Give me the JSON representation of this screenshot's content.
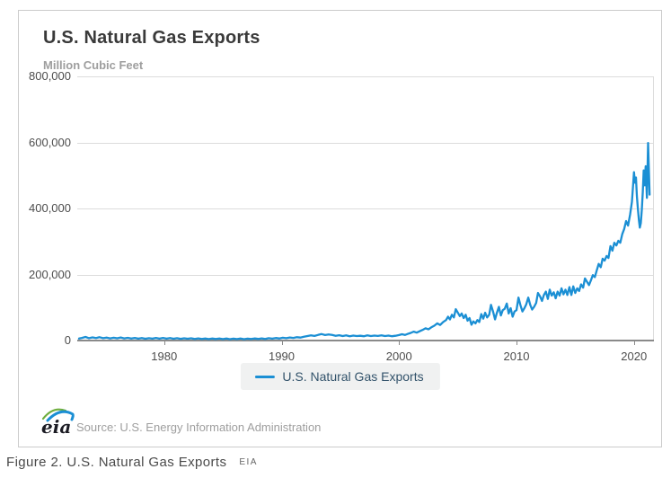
{
  "panel": {
    "title": "U.S. Natural Gas Exports",
    "units_label": "Million Cubic Feet"
  },
  "legend": {
    "label": "U.S. Natural Gas Exports"
  },
  "footer": {
    "logo_text": "eia",
    "source": "Source: U.S. Energy Information Administration"
  },
  "caption": {
    "text": "Figure 2. U.S. Natural Gas Exports",
    "attribution": "EIA"
  },
  "colors": {
    "line": "#1b8fd4",
    "grid": "#dcdcdc",
    "axis": "#8a8a8a",
    "panel_border": "#cccccc",
    "title_text": "#3a3a3a",
    "muted_text": "#9e9e9e",
    "tick_text": "#4d4d4d",
    "legend_bg": "#f0f1f1",
    "legend_text": "#33536b"
  },
  "chart_data": {
    "type": "line",
    "title": "U.S. Natural Gas Exports",
    "ylabel": "Million Cubic Feet",
    "xlabel": "",
    "series_name": "U.S. Natural Gas Exports",
    "grid": true,
    "legend_position": "bottom",
    "x_range": [
      1972.6,
      2021.7
    ],
    "y_range": [
      0,
      800000
    ],
    "y_ticks": [
      {
        "value": 800000,
        "label": "800,000"
      },
      {
        "value": 600000,
        "label": "600,000"
      },
      {
        "value": 400000,
        "label": "400,000"
      },
      {
        "value": 200000,
        "label": "200,000"
      },
      {
        "value": 0,
        "label": "0"
      }
    ],
    "x_ticks": [
      {
        "value": 1980,
        "label": "1980"
      },
      {
        "value": 1990,
        "label": "1990"
      },
      {
        "value": 2000,
        "label": "2000"
      },
      {
        "value": 2010,
        "label": "2010"
      },
      {
        "value": 2020,
        "label": "2020"
      }
    ],
    "points": [
      [
        1972.75,
        6000
      ],
      [
        1973.0,
        8000
      ],
      [
        1973.3,
        11000
      ],
      [
        1973.6,
        7000
      ],
      [
        1973.9,
        9500
      ],
      [
        1974.2,
        7500
      ],
      [
        1974.5,
        10000
      ],
      [
        1974.8,
        7000
      ],
      [
        1975.1,
        9000
      ],
      [
        1975.4,
        6500
      ],
      [
        1975.7,
        8500
      ],
      [
        1976.0,
        6800
      ],
      [
        1976.3,
        9200
      ],
      [
        1976.6,
        6400
      ],
      [
        1976.9,
        8200
      ],
      [
        1977.2,
        6000
      ],
      [
        1977.5,
        8000
      ],
      [
        1977.8,
        5600
      ],
      [
        1978.1,
        7600
      ],
      [
        1978.4,
        5400
      ],
      [
        1978.7,
        7200
      ],
      [
        1979.0,
        5800
      ],
      [
        1979.3,
        8000
      ],
      [
        1979.6,
        5600
      ],
      [
        1979.9,
        7800
      ],
      [
        1980.2,
        5800
      ],
      [
        1980.5,
        7600
      ],
      [
        1980.8,
        5400
      ],
      [
        1981.1,
        7200
      ],
      [
        1981.4,
        5200
      ],
      [
        1981.7,
        6800
      ],
      [
        1982.0,
        5400
      ],
      [
        1982.3,
        6800
      ],
      [
        1982.6,
        4800
      ],
      [
        1982.9,
        6400
      ],
      [
        1983.2,
        4600
      ],
      [
        1983.5,
        6200
      ],
      [
        1983.8,
        4400
      ],
      [
        1984.1,
        6000
      ],
      [
        1984.4,
        4600
      ],
      [
        1984.7,
        6200
      ],
      [
        1985.0,
        4400
      ],
      [
        1985.3,
        6000
      ],
      [
        1985.6,
        4200
      ],
      [
        1985.9,
        5800
      ],
      [
        1986.2,
        4400
      ],
      [
        1986.5,
        6000
      ],
      [
        1986.8,
        4200
      ],
      [
        1987.1,
        5800
      ],
      [
        1987.4,
        4600
      ],
      [
        1987.7,
        6200
      ],
      [
        1988.0,
        4800
      ],
      [
        1988.3,
        6600
      ],
      [
        1988.6,
        5000
      ],
      [
        1988.9,
        7000
      ],
      [
        1989.2,
        5600
      ],
      [
        1989.5,
        7600
      ],
      [
        1989.8,
        6200
      ],
      [
        1990.1,
        8400
      ],
      [
        1990.4,
        7000
      ],
      [
        1990.7,
        9200
      ],
      [
        1991.0,
        8000
      ],
      [
        1991.3,
        10000
      ],
      [
        1991.6,
        9000
      ],
      [
        1991.9,
        11500
      ],
      [
        1992.2,
        13500
      ],
      [
        1992.5,
        15500
      ],
      [
        1992.8,
        14000
      ],
      [
        1993.1,
        17000
      ],
      [
        1993.4,
        19500
      ],
      [
        1993.7,
        16500
      ],
      [
        1994.0,
        18500
      ],
      [
        1994.3,
        17000
      ],
      [
        1994.6,
        14500
      ],
      [
        1994.9,
        16000
      ],
      [
        1995.2,
        13500
      ],
      [
        1995.5,
        15500
      ],
      [
        1995.8,
        13000
      ],
      [
        1996.1,
        15000
      ],
      [
        1996.4,
        13500
      ],
      [
        1996.7,
        14500
      ],
      [
        1997.0,
        13000
      ],
      [
        1997.3,
        15500
      ],
      [
        1997.6,
        13500
      ],
      [
        1997.9,
        15000
      ],
      [
        1998.2,
        14000
      ],
      [
        1998.5,
        15500
      ],
      [
        1998.8,
        13500
      ],
      [
        1999.1,
        15000
      ],
      [
        1999.4,
        13000
      ],
      [
        1999.7,
        14500
      ],
      [
        2000.0,
        16500
      ],
      [
        2000.25,
        19000
      ],
      [
        2000.5,
        17000
      ],
      [
        2000.75,
        20000
      ],
      [
        2001.0,
        23000
      ],
      [
        2001.25,
        27000
      ],
      [
        2001.5,
        24000
      ],
      [
        2001.75,
        28000
      ],
      [
        2002.0,
        32000
      ],
      [
        2002.25,
        37000
      ],
      [
        2002.5,
        34000
      ],
      [
        2002.75,
        40000
      ],
      [
        2003.0,
        45000
      ],
      [
        2003.25,
        52000
      ],
      [
        2003.5,
        47000
      ],
      [
        2003.75,
        56000
      ],
      [
        2004.0,
        62000
      ],
      [
        2004.17,
        72000
      ],
      [
        2004.33,
        64000
      ],
      [
        2004.5,
        78000
      ],
      [
        2004.67,
        70000
      ],
      [
        2004.83,
        95000
      ],
      [
        2005.0,
        85000
      ],
      [
        2005.17,
        74000
      ],
      [
        2005.33,
        82000
      ],
      [
        2005.5,
        68000
      ],
      [
        2005.67,
        78000
      ],
      [
        2005.83,
        60000
      ],
      [
        2006.0,
        68000
      ],
      [
        2006.17,
        48000
      ],
      [
        2006.33,
        58000
      ],
      [
        2006.5,
        52000
      ],
      [
        2006.67,
        62000
      ],
      [
        2006.83,
        56000
      ],
      [
        2007.0,
        80000
      ],
      [
        2007.17,
        66000
      ],
      [
        2007.33,
        84000
      ],
      [
        2007.5,
        70000
      ],
      [
        2007.67,
        78000
      ],
      [
        2007.83,
        108000
      ],
      [
        2008.0,
        88000
      ],
      [
        2008.17,
        64000
      ],
      [
        2008.33,
        84000
      ],
      [
        2008.5,
        102000
      ],
      [
        2008.67,
        76000
      ],
      [
        2008.83,
        92000
      ],
      [
        2009.0,
        96000
      ],
      [
        2009.17,
        112000
      ],
      [
        2009.33,
        82000
      ],
      [
        2009.5,
        98000
      ],
      [
        2009.67,
        72000
      ],
      [
        2009.83,
        88000
      ],
      [
        2010.0,
        92000
      ],
      [
        2010.17,
        130000
      ],
      [
        2010.33,
        108000
      ],
      [
        2010.5,
        88000
      ],
      [
        2010.67,
        98000
      ],
      [
        2010.83,
        110000
      ],
      [
        2011.0,
        130000
      ],
      [
        2011.17,
        108000
      ],
      [
        2011.33,
        94000
      ],
      [
        2011.5,
        102000
      ],
      [
        2011.67,
        114000
      ],
      [
        2011.83,
        144000
      ],
      [
        2012.0,
        134000
      ],
      [
        2012.17,
        120000
      ],
      [
        2012.33,
        138000
      ],
      [
        2012.5,
        148000
      ],
      [
        2012.67,
        126000
      ],
      [
        2012.83,
        154000
      ],
      [
        2013.0,
        136000
      ],
      [
        2013.17,
        146000
      ],
      [
        2013.33,
        128000
      ],
      [
        2013.5,
        148000
      ],
      [
        2013.67,
        136000
      ],
      [
        2013.83,
        158000
      ],
      [
        2014.0,
        140000
      ],
      [
        2014.17,
        154000
      ],
      [
        2014.33,
        138000
      ],
      [
        2014.5,
        162000
      ],
      [
        2014.67,
        138000
      ],
      [
        2014.83,
        164000
      ],
      [
        2015.0,
        144000
      ],
      [
        2015.17,
        158000
      ],
      [
        2015.33,
        150000
      ],
      [
        2015.5,
        170000
      ],
      [
        2015.67,
        160000
      ],
      [
        2015.83,
        188000
      ],
      [
        2016.0,
        178000
      ],
      [
        2016.17,
        168000
      ],
      [
        2016.33,
        182000
      ],
      [
        2016.5,
        198000
      ],
      [
        2016.67,
        192000
      ],
      [
        2016.83,
        212000
      ],
      [
        2017.0,
        232000
      ],
      [
        2017.17,
        222000
      ],
      [
        2017.33,
        248000
      ],
      [
        2017.5,
        242000
      ],
      [
        2017.67,
        256000
      ],
      [
        2017.83,
        250000
      ],
      [
        2018.0,
        286000
      ],
      [
        2018.17,
        272000
      ],
      [
        2018.33,
        296000
      ],
      [
        2018.5,
        288000
      ],
      [
        2018.67,
        302000
      ],
      [
        2018.83,
        296000
      ],
      [
        2019.0,
        322000
      ],
      [
        2019.17,
        338000
      ],
      [
        2019.33,
        362000
      ],
      [
        2019.5,
        348000
      ],
      [
        2019.67,
        382000
      ],
      [
        2019.83,
        420000
      ],
      [
        2020.0,
        510000
      ],
      [
        2020.08,
        478000
      ],
      [
        2020.17,
        494000
      ],
      [
        2020.25,
        438000
      ],
      [
        2020.33,
        400000
      ],
      [
        2020.42,
        364000
      ],
      [
        2020.5,
        342000
      ],
      [
        2020.58,
        356000
      ],
      [
        2020.67,
        396000
      ],
      [
        2020.75,
        450000
      ],
      [
        2020.83,
        515000
      ],
      [
        2020.92,
        470000
      ],
      [
        2021.0,
        528000
      ],
      [
        2021.1,
        432000
      ],
      [
        2021.2,
        598000
      ],
      [
        2021.33,
        442000
      ]
    ]
  }
}
